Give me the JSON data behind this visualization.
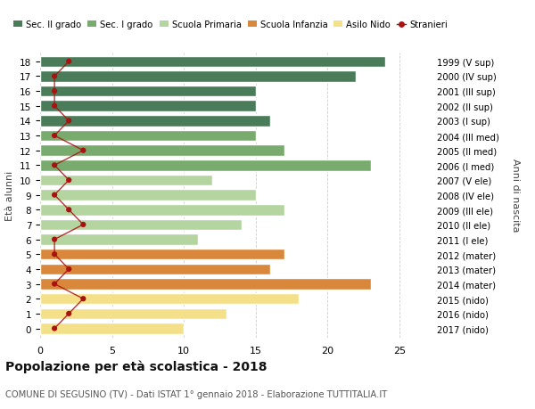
{
  "ages": [
    18,
    17,
    16,
    15,
    14,
    13,
    12,
    11,
    10,
    9,
    8,
    7,
    6,
    5,
    4,
    3,
    2,
    1,
    0
  ],
  "right_labels": [
    "1999 (V sup)",
    "2000 (IV sup)",
    "2001 (III sup)",
    "2002 (II sup)",
    "2003 (I sup)",
    "2004 (III med)",
    "2005 (II med)",
    "2006 (I med)",
    "2007 (V ele)",
    "2008 (IV ele)",
    "2009 (III ele)",
    "2010 (II ele)",
    "2011 (I ele)",
    "2012 (mater)",
    "2013 (mater)",
    "2014 (mater)",
    "2015 (nido)",
    "2016 (nido)",
    "2017 (nido)"
  ],
  "bar_values": [
    24,
    22,
    15,
    15,
    16,
    15,
    17,
    23,
    12,
    15,
    17,
    14,
    11,
    17,
    16,
    23,
    18,
    13,
    10
  ],
  "bar_colors": [
    "#4a7c59",
    "#4a7c59",
    "#4a7c59",
    "#4a7c59",
    "#4a7c59",
    "#7aab6e",
    "#7aab6e",
    "#7aab6e",
    "#b5d5a0",
    "#b5d5a0",
    "#b5d5a0",
    "#b5d5a0",
    "#b5d5a0",
    "#d9873a",
    "#d9873a",
    "#d9873a",
    "#f5e08a",
    "#f5e08a",
    "#f5e08a"
  ],
  "stranieri_values": [
    2,
    1,
    1,
    1,
    2,
    1,
    3,
    1,
    2,
    1,
    2,
    3,
    1,
    1,
    2,
    1,
    3,
    2,
    1
  ],
  "legend_labels": [
    "Sec. II grado",
    "Sec. I grado",
    "Scuola Primaria",
    "Scuola Infanzia",
    "Asilo Nido",
    "Stranieri"
  ],
  "legend_colors": [
    "#4a7c59",
    "#7aab6e",
    "#b5d5a0",
    "#d9873a",
    "#f5e08a",
    "#aa1111"
  ],
  "title": "Popolazione per età scolastica - 2018",
  "subtitle": "COMUNE DI SEGUSINO (TV) - Dati ISTAT 1° gennaio 2018 - Elaborazione TUTTITALIA.IT",
  "ylabel": "Età alunni",
  "right_ylabel": "Anni di nascita",
  "bg_color": "#ffffff",
  "grid_color": "#cccccc",
  "xlim": [
    0,
    27
  ]
}
